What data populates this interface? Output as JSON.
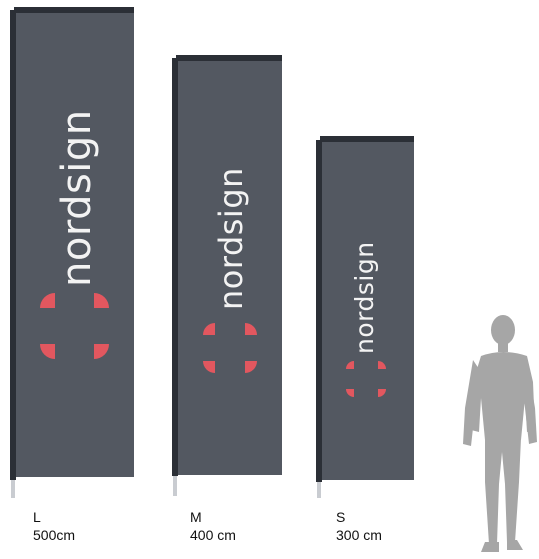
{
  "brand": {
    "name": "nordsign",
    "accent_color": "#e2575f",
    "cloth_color": "#535861",
    "pole_color": "#2b2f36"
  },
  "flags": [
    {
      "size": "L",
      "height": "500cm"
    },
    {
      "size": "M",
      "height": "400 cm"
    },
    {
      "size": "S",
      "height": "300 cm"
    }
  ],
  "figure": {
    "icon": "person-silhouette-icon"
  }
}
